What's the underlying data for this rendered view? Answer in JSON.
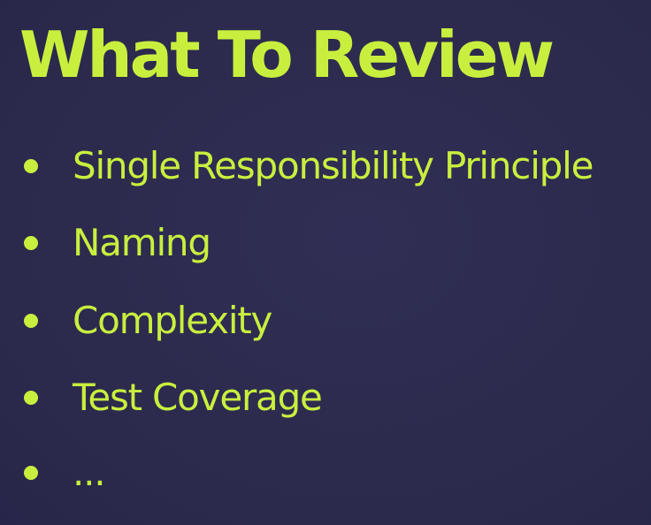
{
  "slide": {
    "title": "What To Review",
    "bullets": [
      "Single Responsibility Principle",
      "Naming",
      "Complexity",
      "Test Coverage",
      "..."
    ]
  },
  "colors": {
    "background": "#2d2b4f",
    "accent": "#c9ef3e"
  }
}
